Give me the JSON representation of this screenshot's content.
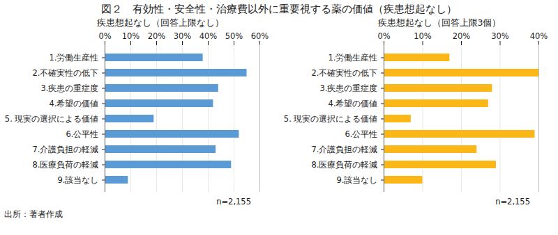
{
  "title": "図２　有効性・安全性・治療費以外に重要視する薬の価値（疾患想起なし）",
  "caption": "出所：著者作成",
  "chart_data": [
    {
      "type": "bar",
      "orientation": "horizontal",
      "title": "疾患想起なし（回答上限なし）",
      "categories": [
        "1.労働生産性",
        "2.不確実性の低下",
        "3.疾患の重症度",
        "4.希望の価値",
        "5. 現実の選択による価値",
        "6.公平性",
        "7.介護負担の軽減",
        "8.医療負荷の軽減",
        "9.該当なし"
      ],
      "values": [
        38,
        55,
        44,
        42,
        19,
        52,
        43,
        49,
        9
      ],
      "color": "#5b9bd5",
      "xlim": [
        0,
        60
      ],
      "xticks": [
        {
          "value": 0,
          "label": "0%"
        },
        {
          "value": 10,
          "label": "10%"
        },
        {
          "value": 20,
          "label": "20%"
        },
        {
          "value": 30,
          "label": "30%"
        },
        {
          "value": 40,
          "label": "40%"
        },
        {
          "value": 50,
          "label": "50%"
        },
        {
          "value": 60,
          "label": "60%"
        }
      ],
      "grid": true,
      "annotation": "n=2,155"
    },
    {
      "type": "bar",
      "orientation": "horizontal",
      "title": "疾患想起なし（回答上限3個）",
      "categories": [
        "1.労働生産性",
        "2.不確実性の低下",
        "3.疾患の重症度",
        "4.希望の価値",
        "5. 現実の選択による価値",
        "6.公平性",
        "7.介護負担の軽減",
        "8.医療負荷の軽減",
        "9.該当なし"
      ],
      "values": [
        17,
        40,
        28,
        27,
        7,
        39,
        24,
        29,
        10
      ],
      "color": "#fbb718",
      "xlim": [
        0,
        40
      ],
      "xticks": [
        {
          "value": 0,
          "label": "0%"
        },
        {
          "value": 10,
          "label": "10%"
        },
        {
          "value": 20,
          "label": "20%"
        },
        {
          "value": 30,
          "label": "30%"
        },
        {
          "value": 40,
          "label": "40%"
        }
      ],
      "grid": true,
      "annotation": "n=2,155"
    }
  ]
}
